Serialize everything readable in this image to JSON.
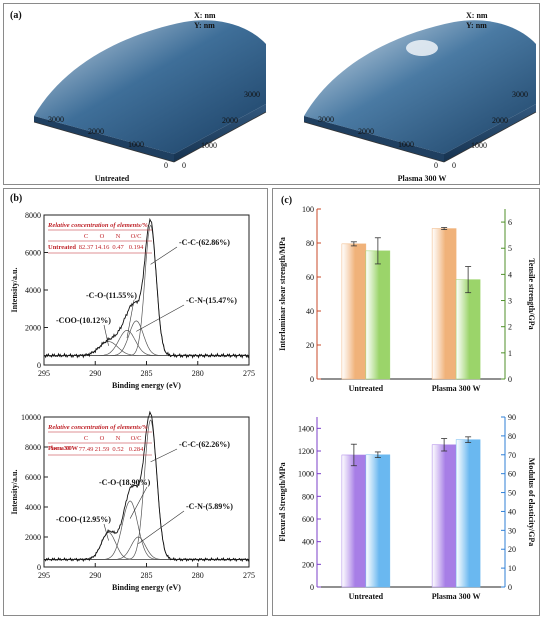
{
  "panel_a": {
    "label": "(a)",
    "xy_labels": [
      "X:  nm",
      "Y:  nm"
    ],
    "surfaces": [
      {
        "caption": "Untreated",
        "left_axis_ticks": [
          "3000",
          "2000",
          "1000",
          "0"
        ],
        "right_axis_ticks": [
          "3000",
          "2000",
          "1000",
          "0"
        ],
        "color": "#2e5f8c"
      },
      {
        "caption": "Plasma 300 W",
        "left_axis_ticks": [
          "3000",
          "2000",
          "1000",
          "0"
        ],
        "right_axis_ticks": [
          "3000",
          "2000",
          "1000",
          "0"
        ],
        "color": "#3a6e9a"
      }
    ]
  },
  "panel_b": {
    "label": "(b)"
  },
  "panel_c": {
    "label": "(c)"
  },
  "chart_data": [
    {
      "type": "line",
      "id": "xps-untreated",
      "xlabel": "Binding energy (eV)",
      "ylabel": "Intensity/a.u.",
      "xlim": [
        295,
        275
      ],
      "ylim": [
        0,
        8000
      ],
      "xticks": [
        295,
        290,
        285,
        280,
        275
      ],
      "yticks": [
        0,
        2000,
        4000,
        6000,
        8000
      ],
      "table": {
        "title": "Relative concentration of elements/%",
        "headers": [
          "C",
          "O",
          "N",
          "O/C"
        ],
        "row_label": "Untreated",
        "values": [
          "82.37",
          "14.16",
          "0.47",
          "0.194"
        ]
      },
      "peaks": [
        {
          "label": "-C-C-(62.86%)",
          "center": 284.6,
          "height": 6950,
          "width": 0.55
        },
        {
          "label": "-C-N-(15.47%)",
          "center": 286.0,
          "height": 1850,
          "width": 0.7
        },
        {
          "label": "-C-O-(11.55%)",
          "center": 286.9,
          "height": 1350,
          "width": 0.8
        },
        {
          "label": "-COO-(10.12%)",
          "center": 288.7,
          "height": 750,
          "width": 0.9
        }
      ],
      "baseline": 500
    },
    {
      "type": "line",
      "id": "xps-plasma",
      "xlabel": "Binding energy (eV)",
      "ylabel": "Intensity/a.u.",
      "xlim": [
        295,
        275
      ],
      "ylim": [
        0,
        10000
      ],
      "xticks": [
        295,
        290,
        285,
        280,
        275
      ],
      "yticks": [
        0,
        2000,
        4000,
        6000,
        8000,
        10000
      ],
      "table": {
        "title": "Relative concentration of elements/%",
        "headers": [
          "C",
          "O",
          "N",
          "O/C"
        ],
        "row_label": "Plasma 300 W",
        "values": [
          "77.49",
          "21.59",
          "0.52",
          "0.284"
        ]
      },
      "peaks": [
        {
          "label": "-C-C-(62.26%)",
          "center": 284.6,
          "height": 9300,
          "width": 0.6
        },
        {
          "label": "-C-N-(5.89%)",
          "center": 285.8,
          "height": 1500,
          "width": 0.7
        },
        {
          "label": "-C-O-(18.90%)",
          "center": 286.6,
          "height": 3900,
          "width": 0.75
        },
        {
          "label": "-COO-(12.95%)",
          "center": 288.7,
          "height": 1800,
          "width": 0.7
        }
      ],
      "baseline": 500
    },
    {
      "type": "bar",
      "id": "ilss-tensile",
      "categories": [
        "Untreated",
        "Plasma 300 W"
      ],
      "series": [
        {
          "name": "Interlaminar shear strength/MPa",
          "axis": "left",
          "values": [
            79.5,
            88.5
          ],
          "errors": [
            1.2,
            0.6
          ],
          "color": "#f0b27a"
        },
        {
          "name": "Tensile strength/GPa",
          "axis": "right",
          "values": [
            4.9,
            3.8
          ],
          "errors": [
            0.5,
            0.5
          ],
          "color": "#9bd46a"
        }
      ],
      "ylabel_left": "Interlaminar shear strength/MPa",
      "ylabel_right": "Tensile strength/GPa",
      "ylim_left": [
        0,
        100
      ],
      "ylim_right": [
        0,
        6.5
      ],
      "yticks_left": [
        0,
        20,
        40,
        60,
        80,
        100
      ],
      "yticks_right": [
        0,
        1,
        2,
        3,
        4,
        5,
        6
      ]
    },
    {
      "type": "bar",
      "id": "flexural",
      "categories": [
        "Untreated",
        "Plasma 300 W"
      ],
      "series": [
        {
          "name": "Flexural Strength/MPa",
          "axis": "left",
          "values": [
            1165,
            1255
          ],
          "errors": [
            95,
            55
          ],
          "color": "#a77ee6"
        },
        {
          "name": "Modulus of elasticity/GPa",
          "axis": "right",
          "values": [
            70,
            78
          ],
          "errors": [
            1.5,
            1.5
          ],
          "color": "#6ab8f0"
        }
      ],
      "ylabel_left": "Flexural Strength/MPa",
      "ylabel_right": "Modulus of elasticity/GPa",
      "ylim_left": [
        0,
        1500
      ],
      "ylim_right": [
        0,
        90
      ],
      "yticks_left": [
        0,
        200,
        400,
        600,
        800,
        1000,
        1200,
        1400
      ],
      "yticks_right": [
        0,
        10,
        20,
        30,
        40,
        50,
        60,
        70,
        80,
        90
      ]
    }
  ]
}
